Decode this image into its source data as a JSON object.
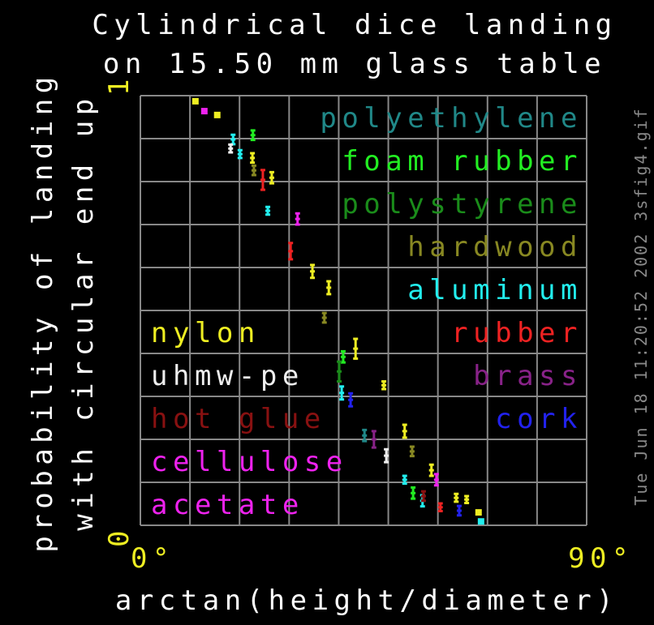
{
  "chart_data": {
    "type": "scatter",
    "title": [
      "Cylindrical dice landing",
      "on 15.50 mm glass table"
    ],
    "xlabel": "arctan(height/diameter)",
    "ylabel": [
      "probability of landing",
      "with circular end up"
    ],
    "timestamp": "Tue Jun 18 11:20:52 2002 3sfig4.gif",
    "xlim": [
      0,
      90
    ],
    "ylim": [
      0,
      1
    ],
    "xticks": [
      {
        "value": 0,
        "label": "0°"
      },
      {
        "value": 90,
        "label": "90°"
      }
    ],
    "yticks": [
      0,
      1
    ],
    "xgrid": [
      0,
      10,
      20,
      30,
      40,
      50,
      60,
      70,
      80,
      90
    ],
    "ygrid": [
      0,
      0.1,
      0.2,
      0.3,
      0.4,
      0.5,
      0.6,
      0.7,
      0.8,
      0.9,
      1
    ],
    "grid": true,
    "series": [
      {
        "name": "polyethylene",
        "color": "#208888",
        "x": [
          45.2
        ],
        "y": [
          0.209
        ],
        "err": [
          0.013
        ]
      },
      {
        "name": "foam rubber",
        "color": "#22ee22",
        "x": [
          22.7,
          40.9,
          55.0
        ],
        "y": [
          0.908,
          0.392,
          0.075
        ],
        "err": [
          0.011,
          0.013,
          0.013
        ]
      },
      {
        "name": "polystyrene",
        "color": "#1a8c1a",
        "x": [
          40.1
        ],
        "y": [
          0.358
        ],
        "err": [
          0.023
        ]
      },
      {
        "name": "hardwood",
        "color": "#888822",
        "x": [
          22.9,
          37.1,
          54.8
        ],
        "y": [
          0.826,
          0.483,
          0.172
        ],
        "err": [
          0.011,
          0.011,
          0.011
        ]
      },
      {
        "name": "aluminum",
        "color": "#22eeee",
        "x": [
          18.7,
          20.1,
          25.7,
          40.6,
          53.3,
          56.9,
          68.7
        ],
        "y": [
          0.898,
          0.864,
          0.732,
          0.308,
          0.106,
          0.057,
          0.009
        ],
        "err": [
          0.011,
          0.009,
          0.009,
          0.015,
          0.009,
          0.013,
          0
        ]
      },
      {
        "name": "rubber",
        "color": "#ee2222",
        "x": [
          24.7,
          30.3,
          60.5
        ],
        "y": [
          0.804,
          0.638,
          0.042
        ],
        "err": [
          0.023,
          0.019,
          0.009
        ]
      },
      {
        "name": "brass",
        "color": "#882288",
        "x": [
          47.1
        ],
        "y": [
          0.2
        ],
        "err": [
          0.019
        ]
      },
      {
        "name": "cork",
        "color": "#2222ee",
        "x": [
          42.4,
          64.3
        ],
        "y": [
          0.292,
          0.034
        ],
        "err": [
          0.015,
          0.011
        ]
      },
      {
        "name": "nylon",
        "color": "#eeee22",
        "x": [
          11.1,
          15.5,
          22.6,
          26.5,
          34.7,
          38.0,
          43.4,
          49.1,
          53.3,
          58.7,
          63.7,
          65.8,
          68.2
        ],
        "y": [
          0.987,
          0.955,
          0.855,
          0.809,
          0.591,
          0.553,
          0.411,
          0.326,
          0.219,
          0.128,
          0.064,
          0.06,
          0.03
        ],
        "err": [
          0,
          0,
          0.011,
          0.013,
          0.015,
          0.015,
          0.023,
          0.009,
          0.015,
          0.013,
          0.009,
          0.008,
          0
        ]
      },
      {
        "name": "uhmw-pe",
        "color": "#eeeeee",
        "x": [
          18.2,
          49.6
        ],
        "y": [
          0.877,
          0.162
        ],
        "err": [
          0.009,
          0.015
        ]
      },
      {
        "name": "hot glue",
        "color": "#881111",
        "x": [
          57.1
        ],
        "y": [
          0.068
        ],
        "err": [
          0.011
        ]
      },
      {
        "name": "cellulose acetate",
        "color": "#ee22ee",
        "x": [
          12.9,
          31.7,
          59.7
        ],
        "y": [
          0.964,
          0.713,
          0.106
        ],
        "err": [
          0,
          0.013,
          0.013
        ]
      }
    ]
  }
}
